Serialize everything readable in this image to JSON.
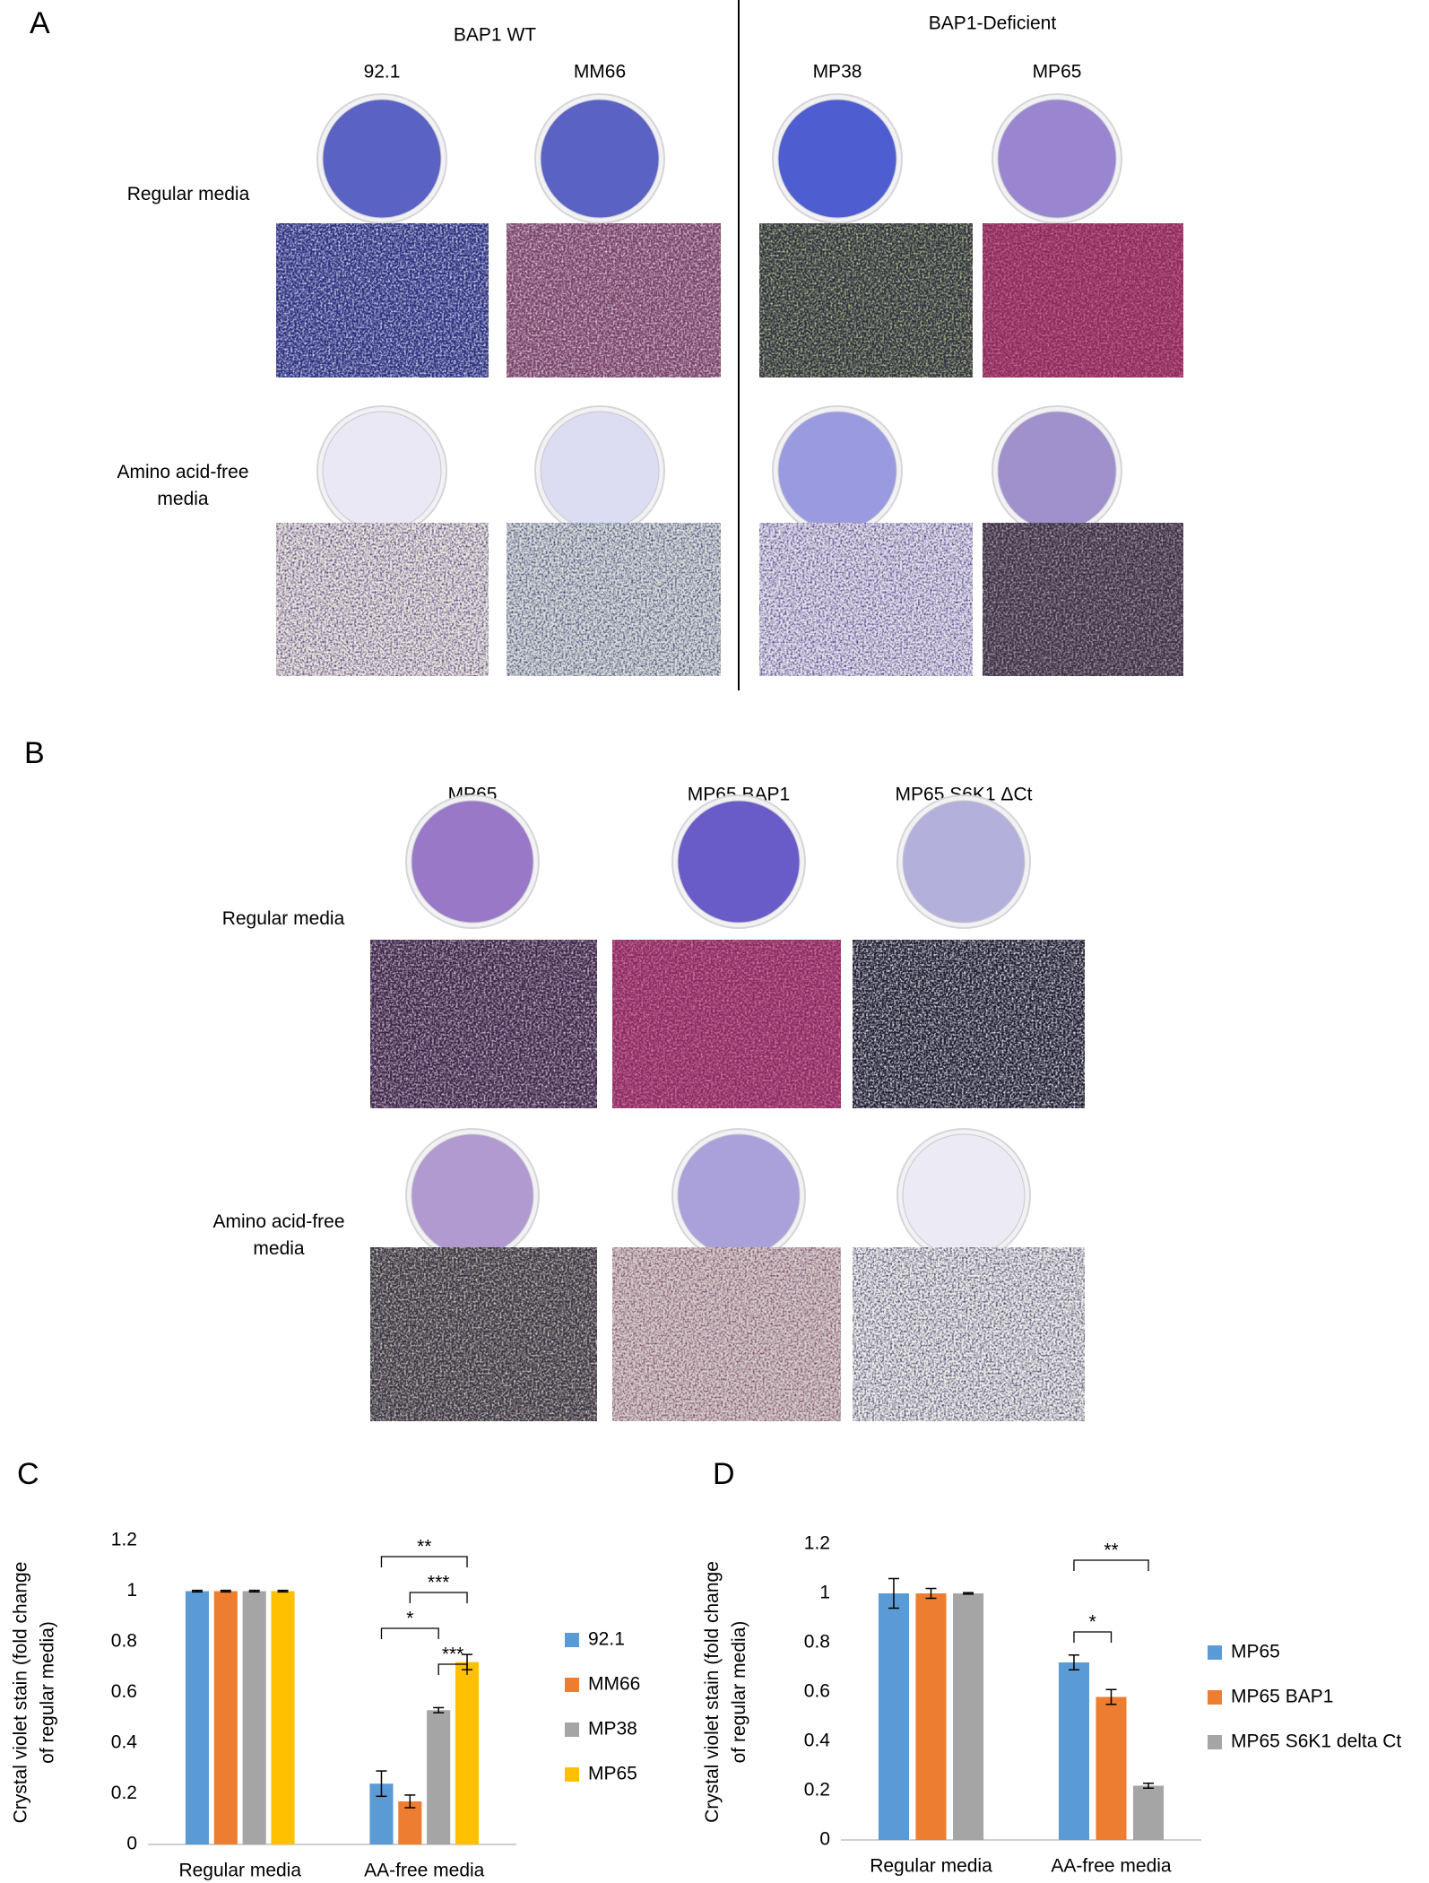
{
  "panel_a": {
    "label": "A",
    "group_wt": "BAP1 WT",
    "group_deficient": "BAP1-Deficient",
    "columns": [
      "92.1",
      "MM66",
      "MP38",
      "MP65"
    ],
    "rows": [
      "Regular media",
      "Amino acid-free media"
    ]
  },
  "panel_b": {
    "label": "B",
    "columns": [
      "MP65",
      "MP65 BAP1",
      "MP65 S6K1 ΔCt"
    ],
    "rows": [
      "Regular media",
      "Amino acid-free media"
    ]
  },
  "chart_data": [
    {
      "type": "bar",
      "panel_label": "C",
      "y_label": "Crystal violet stain (fold change of regular media)",
      "categories": [
        "Regular media",
        "AA-free media"
      ],
      "series": [
        {
          "name": "92.1",
          "color": "#5b9bd5",
          "values": [
            1,
            0.24
          ],
          "errors": [
            0.003,
            0.05
          ]
        },
        {
          "name": "MM66",
          "color": "#ed7d31",
          "values": [
            1,
            0.17
          ],
          "errors": [
            0.003,
            0.025
          ]
        },
        {
          "name": "MP38",
          "color": "#a5a5a5",
          "values": [
            1,
            0.53
          ],
          "errors": [
            0.003,
            0.01
          ]
        },
        {
          "name": "MP65",
          "color": "#ffc000",
          "values": [
            1,
            0.72
          ],
          "errors": [
            0.003,
            0.03
          ]
        }
      ],
      "brackets": [
        {
          "label": "**",
          "series": [
            0,
            3
          ]
        },
        {
          "label": "***",
          "series": [
            1,
            3
          ]
        },
        {
          "label": "*",
          "series": [
            0,
            2
          ]
        },
        {
          "label": "***",
          "series": [
            2,
            3
          ]
        }
      ],
      "ylim": [
        0,
        1.2
      ],
      "yticks": [
        0,
        0.2,
        0.4,
        0.6,
        0.8,
        1,
        1.2
      ],
      "grid": false
    },
    {
      "type": "bar",
      "panel_label": "D",
      "y_label": "Crystal violet stain (fold change of regular media)",
      "categories": [
        "Regular media",
        "AA-free media"
      ],
      "series": [
        {
          "name": "MP65",
          "color": "#5b9bd5",
          "values": [
            1,
            0.72
          ],
          "errors": [
            0.06,
            0.03
          ]
        },
        {
          "name": "MP65 BAP1",
          "color": "#ed7d31",
          "values": [
            1,
            0.58
          ],
          "errors": [
            0.02,
            0.03
          ]
        },
        {
          "name": "MP65 S6K1 delta Ct",
          "color": "#a5a5a5",
          "values": [
            1,
            0.22
          ],
          "errors": [
            0.003,
            0.01
          ]
        }
      ],
      "brackets": [
        {
          "label": "**",
          "series": [
            0,
            2
          ]
        },
        {
          "label": "*",
          "series": [
            0,
            1
          ]
        }
      ],
      "ylim": [
        0,
        1.2
      ],
      "yticks": [
        0,
        0.2,
        0.4,
        0.6,
        0.8,
        1,
        1.2
      ],
      "grid": false
    }
  ]
}
